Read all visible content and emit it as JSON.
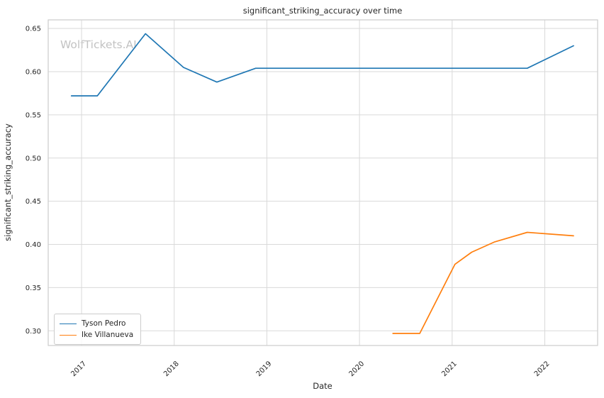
{
  "figure": {
    "watermark": "WolfTickets.AI"
  },
  "chart_data": {
    "type": "line",
    "title": "significant_striking_accuracy over time",
    "xlabel": "Date",
    "ylabel": "significant_striking_accuracy",
    "x_ticks": [
      2017,
      2018,
      2019,
      2020,
      2021,
      2022
    ],
    "y_ticks": [
      0.3,
      0.35,
      0.4,
      0.45,
      0.5,
      0.55,
      0.6,
      0.65
    ],
    "xlim": [
      2016.64,
      2022.57
    ],
    "ylim": [
      0.283,
      0.66
    ],
    "grid": true,
    "legend_position": "lower left",
    "series": [
      {
        "name": "Tyson Pedro",
        "color": "#1f77b4",
        "x": [
          2016.89,
          2017.17,
          2017.69,
          2018.1,
          2018.46,
          2018.88,
          2021.81,
          2022.31
        ],
        "y": [
          0.572,
          0.572,
          0.644,
          0.605,
          0.588,
          0.604,
          0.604,
          0.63
        ]
      },
      {
        "name": "Ike Villanueva",
        "color": "#ff7f0e",
        "x": [
          2020.36,
          2020.65,
          2021.03,
          2021.21,
          2021.46,
          2021.81,
          2022.31
        ],
        "y": [
          0.297,
          0.297,
          0.377,
          0.391,
          0.403,
          0.414,
          0.41
        ]
      }
    ]
  },
  "style": {
    "background": "#ffffff",
    "grid_color": "#d9d9d9",
    "spine_color": "#cccccc",
    "text_color": "#262626",
    "watermark_color": "#bcbcbc"
  }
}
